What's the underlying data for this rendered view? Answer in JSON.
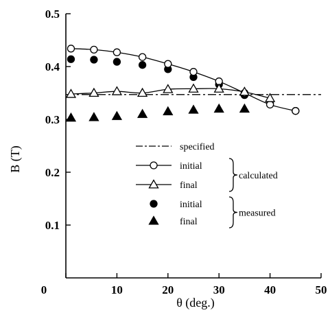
{
  "chart_data": {
    "type": "scatter",
    "xlabel": "θ (deg.)",
    "ylabel": "B (T)",
    "xlim": [
      0,
      50
    ],
    "ylim": [
      0,
      0.5
    ],
    "x_ticks": [
      0,
      10,
      20,
      30,
      40,
      50
    ],
    "y_ticks": [
      0.1,
      0.2,
      0.3,
      0.4,
      0.5
    ],
    "x_tick_labels": [
      "0",
      "10",
      "20",
      "30",
      "40",
      "50"
    ],
    "y_tick_labels": [
      "0.1",
      "0.2",
      "0.3",
      "0.4",
      "0.5"
    ],
    "grid": false,
    "legend_position": "center-right",
    "series": [
      {
        "name": "specified",
        "group": "",
        "style": "dash-dot line",
        "x": [
          0,
          50
        ],
        "y": [
          0.347,
          0.347
        ]
      },
      {
        "name": "initial",
        "group": "calculated",
        "style": "line with open circles",
        "x": [
          1,
          5.5,
          10,
          15,
          20,
          25,
          30,
          35,
          40,
          45
        ],
        "y": [
          0.434,
          0.432,
          0.427,
          0.418,
          0.405,
          0.39,
          0.372,
          0.35,
          0.328,
          0.316
        ]
      },
      {
        "name": "final",
        "group": "calculated",
        "style": "line with open triangles",
        "x": [
          1,
          5.5,
          10,
          15,
          20,
          25,
          30,
          35,
          40
        ],
        "y": [
          0.348,
          0.35,
          0.353,
          0.35,
          0.357,
          0.358,
          0.358,
          0.352,
          0.34
        ]
      },
      {
        "name": "initial",
        "group": "measured",
        "style": "filled circles",
        "x": [
          1,
          5.5,
          10,
          15,
          20,
          25,
          30,
          35,
          40,
          45
        ],
        "y": [
          0.414,
          0.413,
          0.409,
          0.403,
          0.395,
          0.38,
          0.366,
          0.346,
          0.33,
          0.316
        ]
      },
      {
        "name": "final",
        "group": "measured",
        "style": "filled triangles",
        "x": [
          1,
          5.5,
          10,
          15,
          20,
          25,
          30,
          35
        ],
        "y": [
          0.303,
          0.304,
          0.306,
          0.31,
          0.315,
          0.318,
          0.32,
          0.32
        ]
      }
    ],
    "legend": {
      "entries": [
        "specified",
        "initial",
        "final",
        "initial",
        "final"
      ],
      "groups": [
        "calculated",
        "measured"
      ]
    }
  }
}
